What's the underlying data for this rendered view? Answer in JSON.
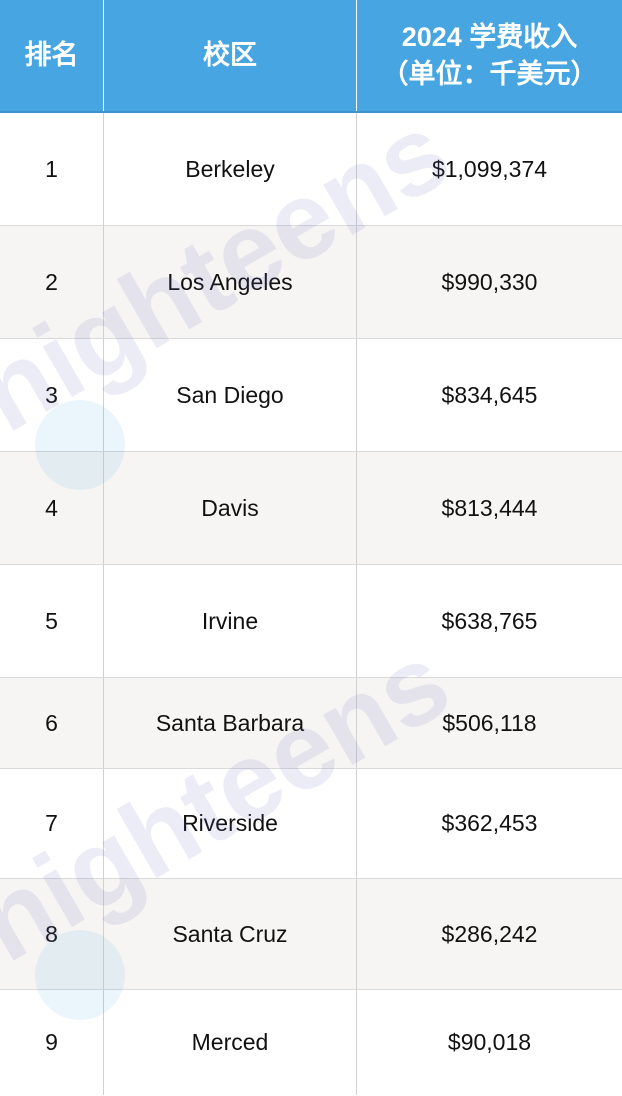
{
  "header": {
    "rank": "排名",
    "campus": "校区",
    "revenue_line1": "2024 学费收入",
    "revenue_line2": "（单位：千美元）"
  },
  "rows": [
    {
      "rank": "1",
      "campus": "Berkeley",
      "revenue": "$1,099,374"
    },
    {
      "rank": "2",
      "campus": "Los Angeles",
      "revenue": "$990,330"
    },
    {
      "rank": "3",
      "campus": "San Diego",
      "revenue": "$834,645"
    },
    {
      "rank": "4",
      "campus": "Davis",
      "revenue": "$813,444"
    },
    {
      "rank": "5",
      "campus": "Irvine",
      "revenue": "$638,765"
    },
    {
      "rank": "6",
      "campus": "Santa Barbara",
      "revenue": "$506,118"
    },
    {
      "rank": "7",
      "campus": "Riverside",
      "revenue": "$362,453"
    },
    {
      "rank": "8",
      "campus": "Santa Cruz",
      "revenue": "$286,242"
    },
    {
      "rank": "9",
      "campus": "Merced",
      "revenue": "$90,018"
    }
  ],
  "watermark": {
    "text": "nighteens"
  },
  "colors": {
    "header_bg": "#47a5e1",
    "alt_row_bg": "#f6f5f3"
  }
}
